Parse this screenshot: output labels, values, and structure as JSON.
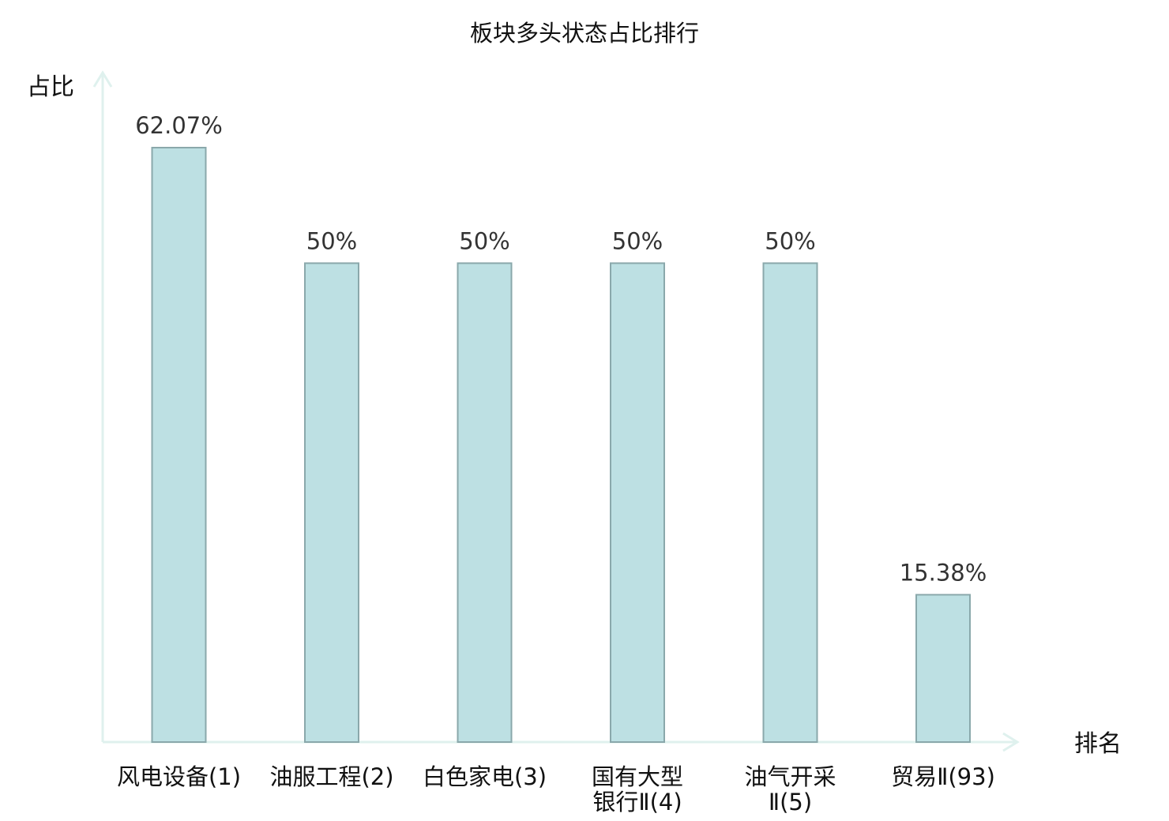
{
  "chart_data": {
    "type": "bar",
    "title": "板块多头状态占比排行",
    "xlabel": "排名",
    "ylabel": "占比",
    "categories": [
      [
        "风电设备(1)"
      ],
      [
        "油服工程(2)"
      ],
      [
        "白色家电(3)"
      ],
      [
        "国有大型",
        "银行Ⅱ(4)"
      ],
      [
        "油气开采",
        "Ⅱ(5)"
      ],
      [
        "贸易Ⅱ(93)"
      ]
    ],
    "values": [
      62.07,
      50,
      50,
      50,
      50,
      15.38
    ],
    "value_labels": [
      "62.07%",
      "50%",
      "50%",
      "50%",
      "50%",
      "15.38%"
    ],
    "highlight_index": 5,
    "ylim": [
      0,
      100
    ],
    "grid": false,
    "legend": "none"
  },
  "colors": {
    "bar_fill": "#bde0e3",
    "bar_stroke": "#8aa8ab",
    "axis": "#dff1ee",
    "text": "#111111",
    "value_text": "#333333",
    "highlight_text": "#e0201b"
  }
}
